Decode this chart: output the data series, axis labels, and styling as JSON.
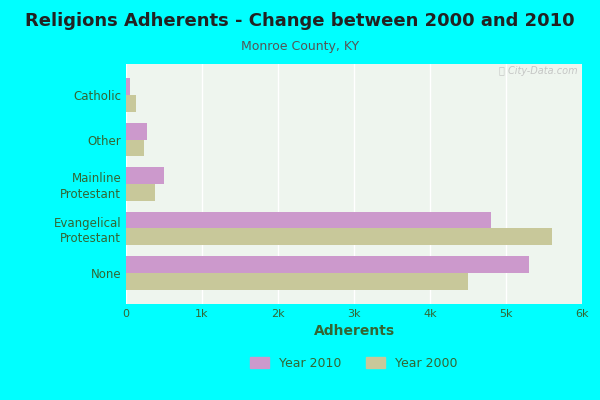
{
  "title": "Religions Adherents - Change between 2000 and 2010",
  "subtitle": "Monroe County, KY",
  "xlabel": "Adherents",
  "categories": [
    "None",
    "Evangelical\nProtestant",
    "Mainline\nProtestant",
    "Other",
    "Catholic"
  ],
  "year2010": [
    5300,
    4800,
    500,
    280,
    50
  ],
  "year2000": [
    4500,
    5600,
    380,
    240,
    130
  ],
  "color_2010": "#cc99cc",
  "color_2000": "#c8c89a",
  "bg_outer": "#00ffff",
  "bg_plot": "#eef5ee",
  "xlim": [
    0,
    6000
  ],
  "xticks": [
    0,
    1000,
    2000,
    3000,
    4000,
    5000,
    6000
  ],
  "xticklabels": [
    "0",
    "1k",
    "2k",
    "3k",
    "4k",
    "5k",
    "6k"
  ],
  "title_fontsize": 13,
  "subtitle_fontsize": 9,
  "xlabel_fontsize": 10,
  "label_fontsize": 8.5,
  "tick_fontsize": 8,
  "watermark": "ⓘ City-Data.com"
}
